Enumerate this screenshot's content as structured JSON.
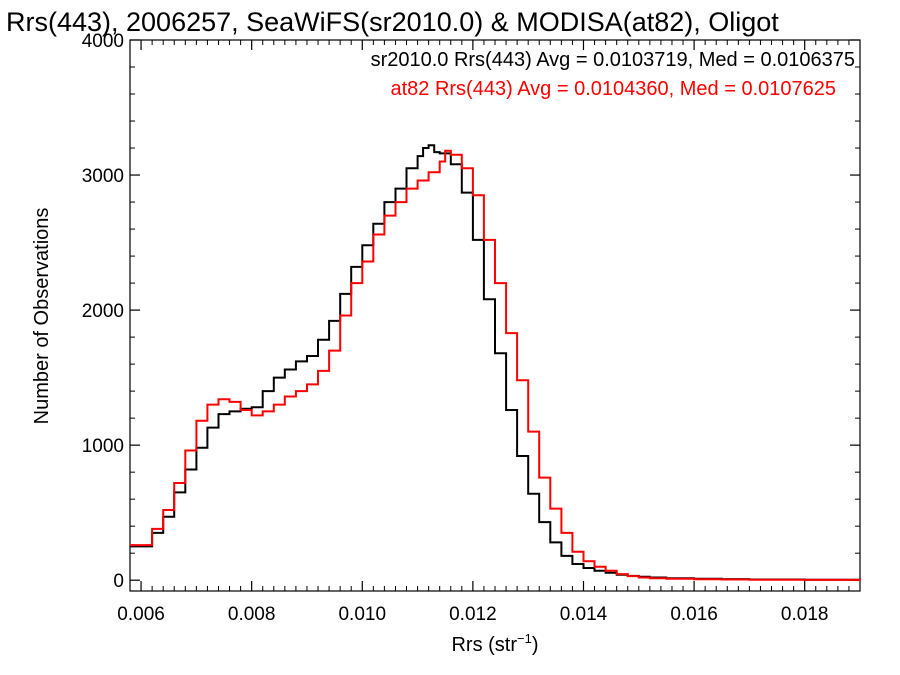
{
  "chart_data": {
    "type": "line",
    "title": "Rrs(443), 2006257, SeaWiFS(sr2010.0) & MODISA(at82), Oligot",
    "xlabel": "Rrs (str",
    "xlabel_sup": "−1",
    "xlabel_close": ")",
    "ylabel": "Number of Observations",
    "xlim": [
      0.0058,
      0.019
    ],
    "ylim": [
      -80,
      4000
    ],
    "xticks": [
      0.006,
      0.008,
      0.01,
      0.012,
      0.014,
      0.016,
      0.018
    ],
    "xtick_labels": [
      "0.006",
      "0.008",
      "0.010",
      "0.012",
      "0.014",
      "0.016",
      "0.018"
    ],
    "yticks": [
      0,
      1000,
      2000,
      3000,
      4000
    ],
    "ytick_labels": [
      "0",
      "1000",
      "2000",
      "3000",
      "4000"
    ],
    "step": true,
    "grid": false,
    "legend_position": "top-right",
    "series": [
      {
        "name": "sr2010.0 Rrs(443) Avg = 0.0103719, Med = 0.0106375",
        "color": "#000000",
        "x": [
          0.0058,
          0.0062,
          0.0064,
          0.0066,
          0.0068,
          0.007,
          0.0072,
          0.0074,
          0.0076,
          0.0078,
          0.008,
          0.0082,
          0.0084,
          0.0086,
          0.0088,
          0.009,
          0.0092,
          0.0094,
          0.0096,
          0.0098,
          0.01,
          0.0102,
          0.0104,
          0.0106,
          0.0108,
          0.011,
          0.0111,
          0.0112,
          0.0113,
          0.0114,
          0.0116,
          0.0118,
          0.012,
          0.0122,
          0.0124,
          0.0126,
          0.0128,
          0.013,
          0.0132,
          0.0134,
          0.0136,
          0.0138,
          0.014,
          0.0142,
          0.0144,
          0.0146,
          0.0148,
          0.015,
          0.0152,
          0.0155,
          0.016,
          0.0165,
          0.017,
          0.018,
          0.019
        ],
        "y": [
          250,
          350,
          470,
          650,
          820,
          980,
          1130,
          1230,
          1250,
          1270,
          1280,
          1400,
          1500,
          1560,
          1620,
          1660,
          1780,
          1920,
          2120,
          2320,
          2480,
          2640,
          2800,
          2900,
          3050,
          3140,
          3200,
          3220,
          3170,
          3160,
          3080,
          2870,
          2520,
          2080,
          1680,
          1260,
          920,
          640,
          430,
          280,
          180,
          120,
          90,
          70,
          55,
          40,
          32,
          25,
          20,
          15,
          10,
          8,
          5,
          3,
          2
        ]
      },
      {
        "name": "at82 Rrs(443) Avg = 0.0104360, Med = 0.0107625",
        "color": "#ff0000",
        "x": [
          0.0058,
          0.0062,
          0.0064,
          0.0066,
          0.0068,
          0.007,
          0.0072,
          0.0074,
          0.0076,
          0.0078,
          0.008,
          0.0082,
          0.0084,
          0.0086,
          0.0088,
          0.009,
          0.0092,
          0.0094,
          0.0096,
          0.0098,
          0.01,
          0.0102,
          0.0104,
          0.0106,
          0.0108,
          0.011,
          0.0112,
          0.0114,
          0.0115,
          0.0116,
          0.0118,
          0.012,
          0.0122,
          0.0124,
          0.0126,
          0.0128,
          0.013,
          0.0132,
          0.0134,
          0.0136,
          0.0138,
          0.014,
          0.0142,
          0.0144,
          0.0146,
          0.0148,
          0.015,
          0.0152,
          0.0155,
          0.016,
          0.0165,
          0.017,
          0.018,
          0.019
        ],
        "y": [
          260,
          380,
          520,
          720,
          960,
          1180,
          1300,
          1340,
          1320,
          1260,
          1220,
          1250,
          1300,
          1360,
          1400,
          1450,
          1550,
          1700,
          1960,
          2200,
          2360,
          2560,
          2700,
          2800,
          2900,
          2960,
          3020,
          3100,
          3180,
          3150,
          3050,
          2850,
          2520,
          2200,
          1830,
          1480,
          1100,
          760,
          530,
          350,
          210,
          140,
          100,
          70,
          45,
          30,
          20,
          15,
          10,
          7,
          5,
          3,
          2,
          1
        ]
      }
    ]
  }
}
